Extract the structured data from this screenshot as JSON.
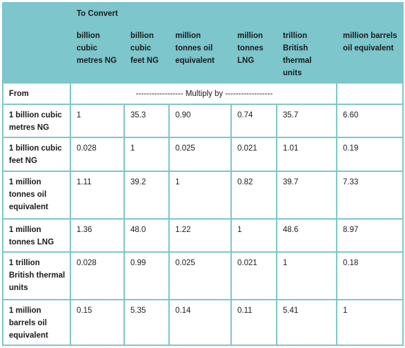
{
  "header": {
    "to_convert": "To Convert",
    "columns": [
      "billion cubic metres NG",
      "billion cubic feet NG",
      "million tonnes oil equivalent",
      "million tonnes LNG",
      "trillion British thermal units",
      "million barrels oil equivalent"
    ]
  },
  "from_label": "From",
  "multiply_label": "------------------ Multiply by ------------------",
  "rows": [
    {
      "label": "1 billion cubic metres NG",
      "values": [
        "1",
        "35.3",
        "0.90",
        "0.74",
        "35.7",
        "6.60"
      ]
    },
    {
      "label": "1 billion cubic feet NG",
      "values": [
        "0.028",
        "1",
        "0.025",
        "0.021",
        "1.01",
        "0.19"
      ]
    },
    {
      "label": "1 million tonnes oil equivalent",
      "values": [
        "1.11",
        "39.2",
        "1",
        "0.82",
        "39.7",
        "7.33"
      ]
    },
    {
      "label": "1 million tonnes LNG",
      "values": [
        "1.36",
        "48.0",
        "1.22",
        "1",
        "48.6",
        "8.97"
      ]
    },
    {
      "label": "1 trillion British thermal units",
      "values": [
        "0.028",
        "0.99",
        "0.025",
        "0.021",
        "1",
        "0.18"
      ]
    },
    {
      "label": "1 million barrels oil equivalent",
      "values": [
        "0.15",
        "5.35",
        "0.14",
        "0.11",
        "5.41",
        "1"
      ]
    }
  ],
  "colors": {
    "header_bg": "#7cc6cc",
    "border": "#7cc6cc"
  }
}
